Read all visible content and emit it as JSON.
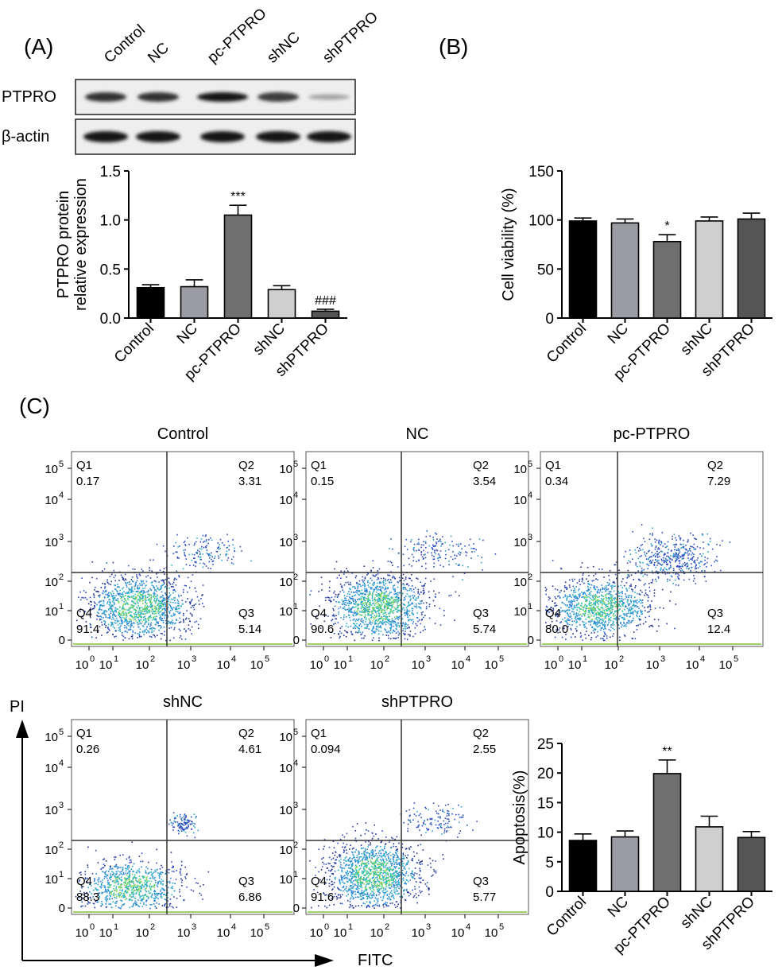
{
  "panel_labels": {
    "a": "(A)",
    "b": "(B)",
    "c": "(C)"
  },
  "western_blot": {
    "lanes": [
      "Control",
      "NC",
      "pc-PTPRO",
      "shNC",
      "shPTPRO"
    ],
    "rows": [
      {
        "label": "PTPRO",
        "intensity": [
          0.85,
          0.85,
          1.0,
          0.8,
          0.3
        ]
      },
      {
        "label": "β-actin",
        "intensity": [
          1.0,
          1.0,
          1.0,
          1.0,
          1.0
        ]
      }
    ]
  },
  "flow": {
    "x_axis_label": "FITC",
    "y_axis_label": "PI",
    "tick_labels": [
      "10",
      "10",
      "10",
      "10",
      "10",
      "10",
      "0",
      "1",
      "2",
      "3",
      "4",
      "5"
    ],
    "plots": [
      {
        "title": "Control",
        "q1": "0.17",
        "q2": "3.31",
        "q3": "5.14",
        "q4": "91.4"
      },
      {
        "title": "NC",
        "q1": "0.15",
        "q2": "3.54",
        "q3": "5.74",
        "q4": "90.6"
      },
      {
        "title": "pc-PTPRO",
        "q1": "0.34",
        "q2": "7.29",
        "q3": "12.4",
        "q4": "80.0"
      },
      {
        "title": "shNC",
        "q1": "0.26",
        "q2": "4.61",
        "q3": "6.86",
        "q4": "88.3"
      },
      {
        "title": "shPTPRO",
        "q1": "0.094",
        "q2": "2.55",
        "q3": "5.77",
        "q4": "91.6"
      }
    ],
    "quadrant_names": [
      "Q1",
      "Q2",
      "Q3",
      "Q4"
    ]
  },
  "chart_data": [
    {
      "type": "bar",
      "categories": [
        "Control",
        "NC",
        "pc-PTPRO",
        "shNC",
        "shPTPRO"
      ],
      "values": [
        0.31,
        0.32,
        1.05,
        0.29,
        0.07
      ],
      "errors": [
        0.03,
        0.07,
        0.1,
        0.04,
        0.02
      ],
      "annotations": [
        "",
        "",
        "***",
        "",
        "###"
      ],
      "title": "",
      "xlabel": "",
      "ylabel": "PTPRO protein relative expression",
      "ylabel_lines": [
        "PTPRO protein",
        "relative expression"
      ],
      "ylim": [
        0,
        1.5
      ],
      "yticks": [
        "0.0",
        "0.5",
        "1.0",
        "1.5"
      ],
      "colors": [
        "#000000",
        "#9b9ba3",
        "#6f6f6f",
        "#cfcfcf",
        "#555555"
      ]
    },
    {
      "type": "bar",
      "categories": [
        "Control",
        "NC",
        "pc-PTPRO",
        "shNC",
        "shPTPRO"
      ],
      "values": [
        99,
        97,
        78,
        99,
        101
      ],
      "errors": [
        3,
        4,
        7,
        4,
        6
      ],
      "annotations": [
        "",
        "",
        "*",
        "",
        ""
      ],
      "title": "",
      "xlabel": "",
      "ylabel": "Cell viability (%)",
      "ylim": [
        0,
        150
      ],
      "yticks": [
        "0",
        "50",
        "100",
        "150"
      ],
      "colors": [
        "#000000",
        "#9b9ba3",
        "#6f6f6f",
        "#cfcfcf",
        "#555555"
      ]
    },
    {
      "type": "bar",
      "categories": [
        "Control",
        "NC",
        "pc-PTPRO",
        "shNC",
        "shPTPRO"
      ],
      "values": [
        8.6,
        9.2,
        19.9,
        10.9,
        9.1
      ],
      "errors": [
        1.1,
        1.0,
        2.3,
        1.8,
        1.0
      ],
      "annotations": [
        "",
        "",
        "**",
        "",
        ""
      ],
      "title": "",
      "xlabel": "",
      "ylabel": "Apoptosis(%)",
      "ylim": [
        0,
        25
      ],
      "yticks": [
        "0",
        "5",
        "10",
        "15",
        "20",
        "25"
      ],
      "colors": [
        "#000000",
        "#9b9ba3",
        "#6f6f6f",
        "#cfcfcf",
        "#555555"
      ]
    }
  ]
}
